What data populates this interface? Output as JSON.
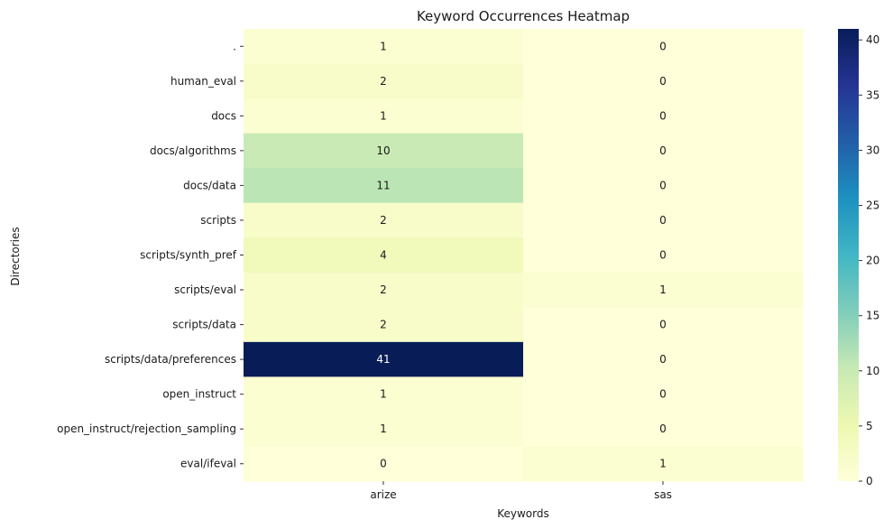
{
  "chart_data": {
    "type": "heatmap",
    "title": "Keyword Occurrences Heatmap",
    "xlabel": "Keywords",
    "ylabel": "Directories",
    "x": [
      "arize",
      "sas"
    ],
    "y": [
      ".",
      "human_eval",
      "docs",
      "docs/algorithms",
      "docs/data",
      "scripts",
      "scripts/synth_pref",
      "scripts/eval",
      "scripts/data",
      "scripts/data/preferences",
      "open_instruct",
      "open_instruct/rejection_sampling",
      "eval/ifeval"
    ],
    "values": [
      [
        1,
        0
      ],
      [
        2,
        0
      ],
      [
        1,
        0
      ],
      [
        10,
        0
      ],
      [
        11,
        0
      ],
      [
        2,
        0
      ],
      [
        4,
        0
      ],
      [
        2,
        1
      ],
      [
        2,
        0
      ],
      [
        41,
        0
      ],
      [
        1,
        0
      ],
      [
        1,
        0
      ],
      [
        0,
        1
      ]
    ],
    "colorbar": {
      "min": 0,
      "max": 41,
      "ticks": [
        0,
        5,
        10,
        15,
        20,
        25,
        30,
        35,
        40
      ]
    },
    "colormap": "YlGnBu",
    "annotations": true,
    "grid": false
  }
}
